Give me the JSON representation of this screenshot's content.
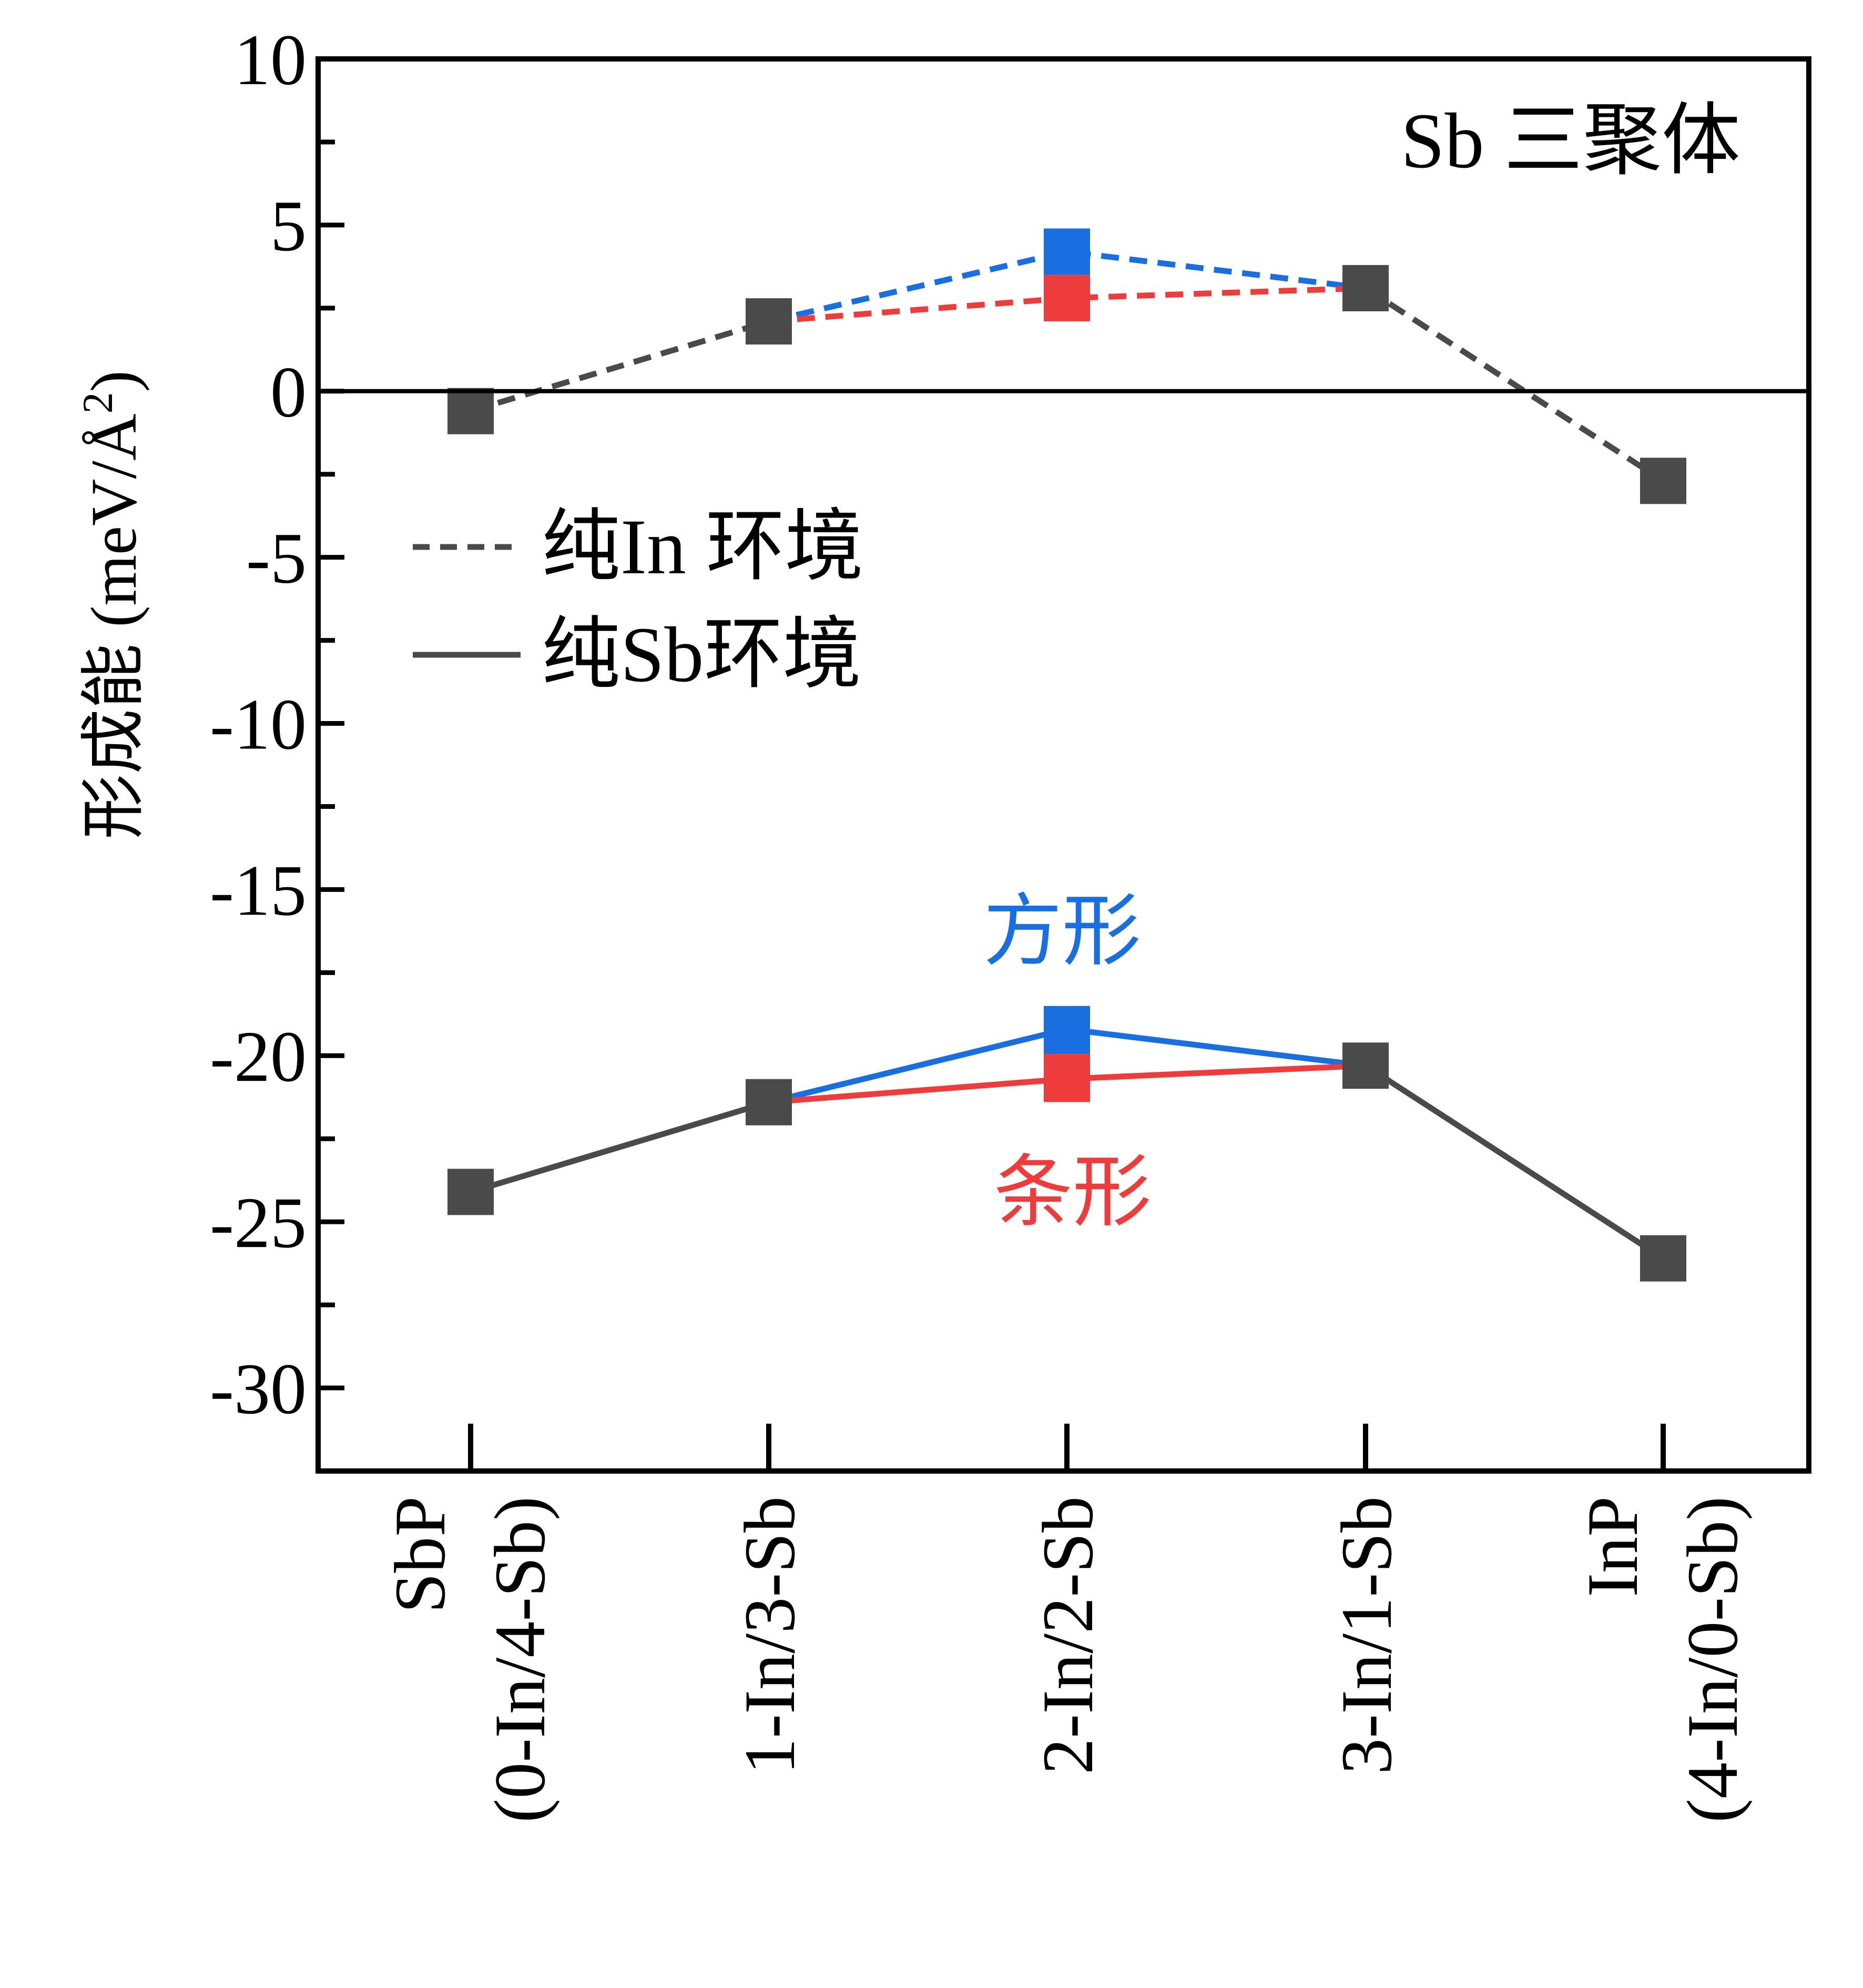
{
  "chart_data": {
    "type": "line",
    "ylabel": "形成能 (meV/Å",
    "ylabel_sup": "2",
    "ylabel_close": ")",
    "ylim": [
      -32.5,
      10
    ],
    "yticks": [
      10,
      5,
      0,
      -5,
      -10,
      -15,
      -20,
      -25,
      -30
    ],
    "ytick_labels": [
      "10",
      "5",
      "0",
      "-5",
      "-10",
      "-15",
      "-20",
      "-25",
      "-30"
    ],
    "zero_line": true,
    "grid": false,
    "xcategories": [
      {
        "line1": "SbP",
        "line2": "(0-In/4-Sb)"
      },
      {
        "line1": "1-In/3-Sb",
        "line2": ""
      },
      {
        "line1": "2-In/2-Sb",
        "line2": ""
      },
      {
        "line1": "3-In/1-Sb",
        "line2": ""
      },
      {
        "line1": "InP",
        "line2": "(4-In/0-Sb)"
      }
    ],
    "corner_label": "Sb 三聚体",
    "legend": {
      "placement": "upper-left",
      "entries": [
        {
          "label": "纯In 环境",
          "style": "dashed"
        },
        {
          "label": "纯Sb环境",
          "style": "solid"
        }
      ]
    },
    "annotations": [
      {
        "text": "方形",
        "color": "#1a6fe0",
        "at": [
          2,
          -16.7
        ]
      },
      {
        "text": "条形",
        "color": "#ee3b3b",
        "at": [
          2,
          -24.5
        ]
      }
    ],
    "colors": {
      "dark": "#4a4a4a",
      "blue": "#1a6fe0",
      "red": "#ee3b3b"
    },
    "series": [
      {
        "environment": "纯In 环境",
        "style": "dashed",
        "color": "dark",
        "x": [
          0,
          1
        ],
        "y": [
          -0.6,
          2.1
        ]
      },
      {
        "environment": "纯In 环境",
        "style": "dashed",
        "color": "dark",
        "x": [
          3,
          4
        ],
        "y": [
          3.1,
          -2.7
        ]
      },
      {
        "environment": "纯In 环境",
        "style": "dashed",
        "color": "blue",
        "name": "方形",
        "x": [
          1,
          2,
          3
        ],
        "y": [
          2.1,
          4.2,
          3.1
        ]
      },
      {
        "environment": "纯In 环境",
        "style": "dashed",
        "color": "red",
        "name": "条形",
        "x": [
          1,
          2,
          3
        ],
        "y": [
          2.1,
          2.8,
          3.1
        ]
      },
      {
        "environment": "纯Sb环境",
        "style": "solid",
        "color": "dark",
        "x": [
          0,
          1
        ],
        "y": [
          -24.1,
          -21.4
        ]
      },
      {
        "environment": "纯Sb环境",
        "style": "solid",
        "color": "dark",
        "x": [
          3,
          4
        ],
        "y": [
          -20.3,
          -26.1
        ]
      },
      {
        "environment": "纯Sb环境",
        "style": "solid",
        "color": "blue",
        "name": "方形",
        "x": [
          1,
          2,
          3
        ],
        "y": [
          -21.4,
          -19.2,
          -20.3
        ]
      },
      {
        "environment": "纯Sb环境",
        "style": "solid",
        "color": "red",
        "name": "条形",
        "x": [
          1,
          2,
          3
        ],
        "y": [
          -21.4,
          -20.7,
          -20.3
        ]
      }
    ],
    "markers": [
      {
        "x": 0,
        "y": -0.6,
        "color": "dark"
      },
      {
        "x": 1,
        "y": 2.1,
        "color": "dark"
      },
      {
        "x": 2,
        "y": 4.2,
        "color": "blue",
        "split_with": 2.8
      },
      {
        "x": 3,
        "y": 3.1,
        "color": "dark"
      },
      {
        "x": 4,
        "y": -2.7,
        "color": "dark"
      },
      {
        "x": 0,
        "y": -24.1,
        "color": "dark"
      },
      {
        "x": 1,
        "y": -21.4,
        "color": "dark"
      },
      {
        "x": 2,
        "y": -19.2,
        "color": "blue",
        "split_with": -20.7
      },
      {
        "x": 3,
        "y": -20.3,
        "color": "dark"
      },
      {
        "x": 4,
        "y": -26.1,
        "color": "dark"
      }
    ]
  }
}
